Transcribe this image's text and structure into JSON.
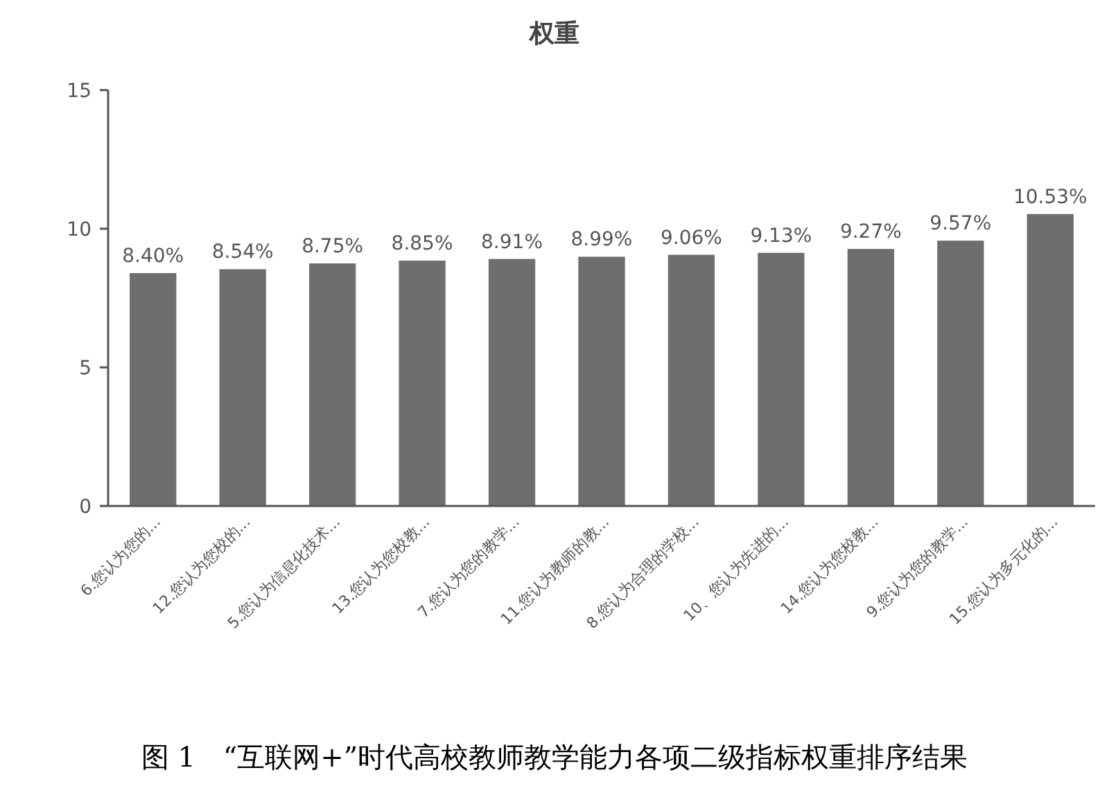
{
  "chart_data": {
    "type": "bar",
    "title": "权重",
    "categories": [
      "6.您认为您的...",
      "12.您认为您校的...",
      "5.您认为信息化技术...",
      "13.您认为您校教...",
      "7.您认为您的教学...",
      "11.您认为教师的教...",
      "8.您认为合理的学校...",
      "10、您认为先进的...",
      "14.您认为您校教...",
      "9.您认为您的教学...",
      "15.您认为多元化的..."
    ],
    "values": [
      8.4,
      8.54,
      8.75,
      8.85,
      8.91,
      8.99,
      9.06,
      9.13,
      9.27,
      9.57,
      10.53
    ],
    "value_labels": [
      "8.40%",
      "8.54%",
      "8.75%",
      "8.85%",
      "8.91%",
      "8.99%",
      "9.06%",
      "9.13%",
      "9.27%",
      "9.57%",
      "10.53%"
    ],
    "color": "#6e6e6e",
    "ylim": [
      0,
      15
    ],
    "yticks": [
      0,
      5,
      10,
      15
    ],
    "grid": false,
    "annotations": [
      "图 1　“互联网+”时代高校教师教学能力各项二级指标权重排序结果"
    ]
  }
}
